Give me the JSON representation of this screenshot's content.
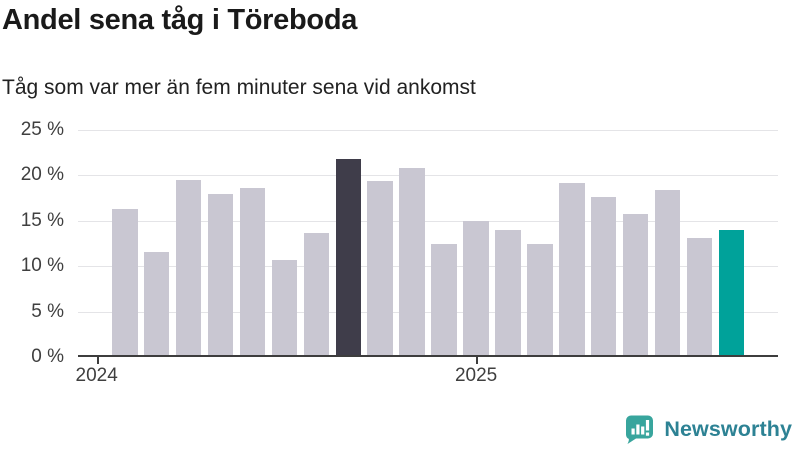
{
  "header": {
    "title": "Andel sena tåg i Töreboda",
    "subtitle": "Tåg som var mer än fem minuter sena vid ankomst"
  },
  "chart_data": {
    "type": "bar",
    "title": "Andel sena tåg i Töreboda",
    "subtitle": "Tåg som var mer än fem minuter sena vid ankomst",
    "unit": "%",
    "categories": [
      "2024-01",
      "2024-02",
      "2024-03",
      "2024-04",
      "2024-05",
      "2024-06",
      "2024-07",
      "2024-08",
      "2024-09",
      "2024-10",
      "2024-11",
      "2024-12",
      "2025-01",
      "2025-02",
      "2025-03",
      "2025-04",
      "2025-05",
      "2025-06",
      "2025-07",
      "2025-08"
    ],
    "values": [
      16.3,
      11.6,
      19.5,
      18.0,
      18.6,
      10.7,
      13.7,
      21.8,
      19.4,
      20.8,
      12.4,
      15.0,
      14.0,
      12.4,
      19.2,
      17.6,
      15.7,
      18.4,
      13.1,
      14.0
    ],
    "highlight_dark_index": 7,
    "highlight_accent_index": 19,
    "ylim": [
      0,
      25
    ],
    "y_tick_step": 5,
    "y_tick_labels": [
      "0 %",
      "5 %",
      "10 %",
      "15 %",
      "20 %",
      "25 %"
    ],
    "x_ticks": [
      {
        "label": "2024",
        "month_index": 0
      },
      {
        "label": "2025",
        "month_index": 12
      }
    ],
    "grid": true,
    "legend": "none",
    "colors": {
      "bar_default": "#c9c7d2",
      "bar_dark": "#3f3d4a",
      "bar_accent": "#00a29a",
      "gridline": "#e4e4e7",
      "axis": "#3d3d3d"
    }
  },
  "footer": {
    "brand": "Newsworthy",
    "brand_text_color": "#2d8294",
    "brand_icon_color": "#38a59d"
  }
}
